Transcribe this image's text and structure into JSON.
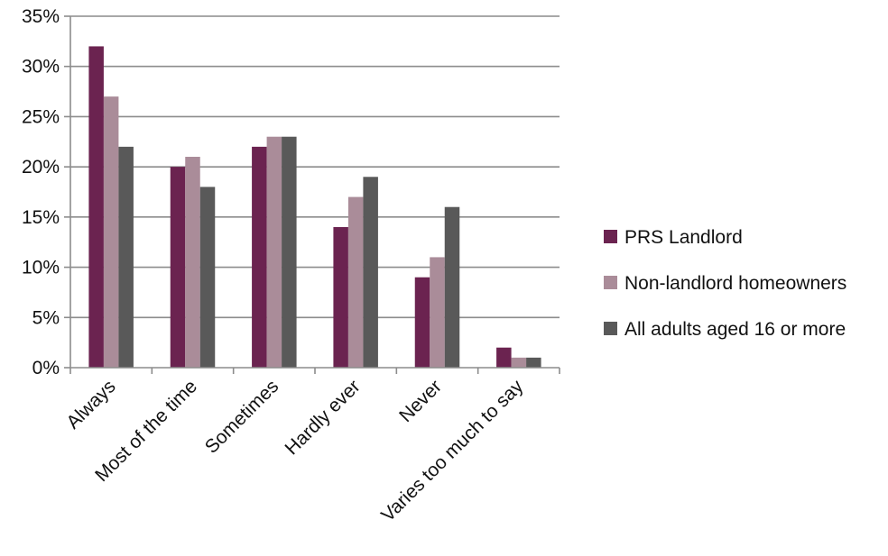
{
  "chart_data": {
    "type": "bar",
    "title": "",
    "xlabel": "",
    "ylabel": "",
    "ylim": [
      0,
      35
    ],
    "y_ticks": [
      "0%",
      "5%",
      "10%",
      "15%",
      "20%",
      "25%",
      "30%",
      "35%"
    ],
    "y_unit": "%",
    "grid": true,
    "legend_position": "right",
    "categories": [
      "Always",
      "Most of the time",
      "Sometimes",
      "Hardly ever",
      "Never",
      "Varies too much to say"
    ],
    "series": [
      {
        "name": "PRS Landlord",
        "color": "#6b2350",
        "values": [
          32,
          20,
          22,
          14,
          9,
          2
        ]
      },
      {
        "name": "Non-landlord homeowners",
        "color": "#aa8c99",
        "values": [
          27,
          21,
          23,
          17,
          11,
          1
        ]
      },
      {
        "name": "All adults aged 16 or more",
        "color": "#595959",
        "values": [
          22,
          18,
          23,
          19,
          16,
          1
        ]
      }
    ]
  }
}
